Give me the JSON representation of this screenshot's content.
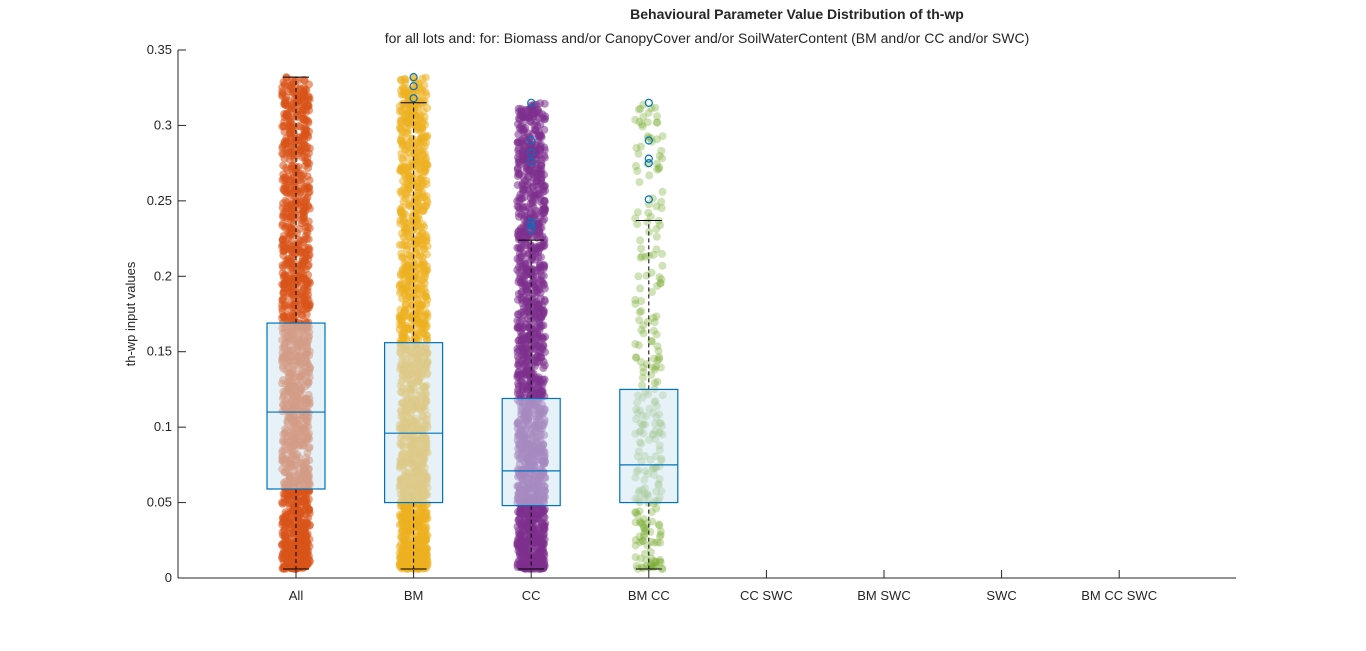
{
  "chart_data": {
    "type": "box",
    "title": "Behavioural Parameter Value Distribution of th-wp",
    "subtitle": "for all lots and: for: Biomass and/or CanopyCover and/or SoilWaterContent (BM and/or CC and/or SWC)",
    "xlabel": "",
    "ylabel": "th-wp input values",
    "ylim": [
      0,
      0.35
    ],
    "yticks": [
      0,
      0.05,
      0.1,
      0.15,
      0.2,
      0.25,
      0.3,
      0.35
    ],
    "ytick_labels": [
      "0",
      "0.05",
      "0.1",
      "0.15",
      "0.2",
      "0.25",
      "0.3",
      "0.35"
    ],
    "categories": [
      "All",
      "BM",
      "CC",
      "BM CC",
      "CC SWC",
      "BM SWC",
      "SWC",
      "BM CC SWC"
    ],
    "box_color": "#0072BD",
    "box_fill": "#CDE3F2",
    "whisker_color": "#000000",
    "boxes": [
      {
        "category": "All",
        "q1": 0.059,
        "median": 0.11,
        "q3": 0.169,
        "whisker_low": 0.006,
        "whisker_high": 0.332,
        "outliers": []
      },
      {
        "category": "BM",
        "q1": 0.05,
        "median": 0.096,
        "q3": 0.156,
        "whisker_low": 0.006,
        "whisker_high": 0.315,
        "outliers": [
          0.318,
          0.326,
          0.332
        ]
      },
      {
        "category": "CC",
        "q1": 0.048,
        "median": 0.071,
        "q3": 0.119,
        "whisker_low": 0.006,
        "whisker_high": 0.224,
        "outliers": [
          0.231,
          0.234,
          0.236,
          0.276,
          0.282,
          0.29,
          0.315
        ]
      },
      {
        "category": "BM CC",
        "q1": 0.05,
        "median": 0.075,
        "q3": 0.125,
        "whisker_low": 0.006,
        "whisker_high": 0.237,
        "outliers": [
          0.251,
          0.275,
          0.278,
          0.29,
          0.315
        ]
      }
    ],
    "scatter_series": [
      {
        "category": "All",
        "color": "#D95319",
        "dense": true,
        "min": 0.006,
        "max": 0.332
      },
      {
        "category": "BM",
        "color": "#EDB120",
        "dense": true,
        "min": 0.006,
        "max": 0.332
      },
      {
        "category": "CC",
        "color": "#7E2F8E",
        "dense": true,
        "min": 0.006,
        "max": 0.315
      },
      {
        "category": "BM CC",
        "color": "#77AC30",
        "dense": false,
        "min": 0.006,
        "max": 0.315
      }
    ],
    "grid": false,
    "legend": "none"
  }
}
